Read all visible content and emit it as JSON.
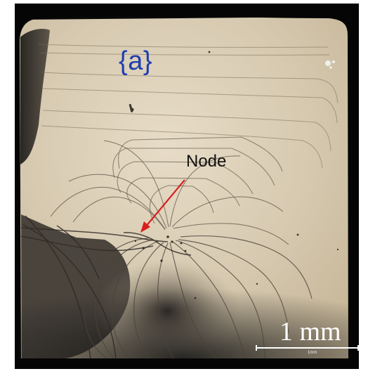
{
  "image": {
    "panel_label": "{a}",
    "annotation": {
      "label": "Node",
      "arrow_color": "#d91f1f"
    },
    "scale_bar": {
      "label": "1 mm",
      "sublabel": "1mm",
      "color": "#ffffff"
    },
    "colors": {
      "crystal_surface": "#d8ccb4",
      "background": "#050505",
      "panel_label_color": "#1f3fae"
    }
  }
}
